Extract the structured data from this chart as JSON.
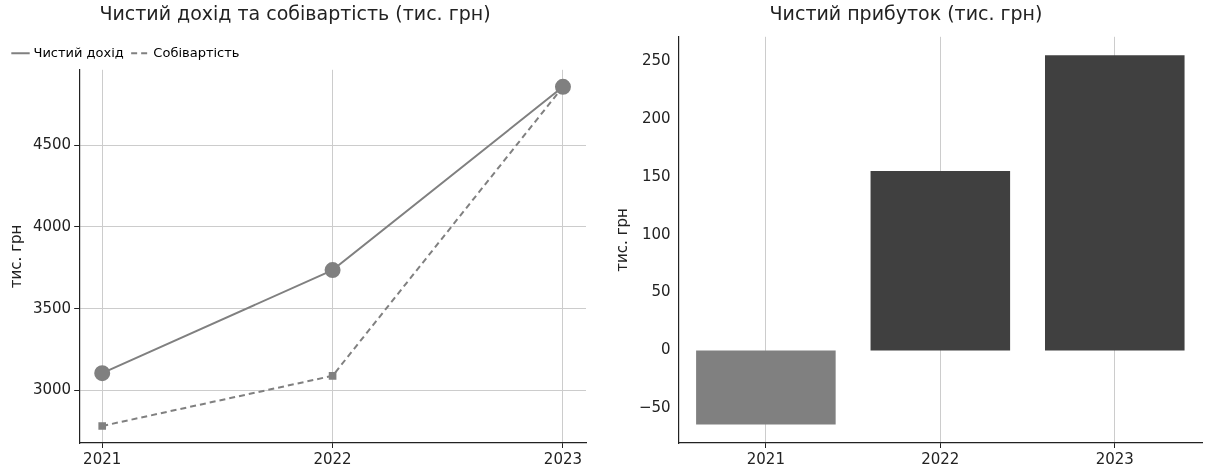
{
  "chart_data": [
    {
      "type": "line",
      "title": "Чистий дохід та собівартість (тис. грн)",
      "ylabel": "тис. грн",
      "x": [
        2021,
        2022,
        2023
      ],
      "xlim": [
        2020.9,
        2023.1
      ],
      "xticks": [
        2021,
        2022,
        2023
      ],
      "ylim": [
        2678,
        4961
      ],
      "yticks": [
        3000,
        3500,
        4000,
        4500
      ],
      "grid": true,
      "legend": "top left",
      "series": [
        {
          "name": "Чистий дохід",
          "color": "#808080",
          "values": [
            3105,
            3736,
            4857
          ],
          "marker": "circle",
          "line_style": "solid"
        },
        {
          "name": "Собівартість",
          "color": "#808080",
          "values": [
            2782,
            3089,
            4857
          ],
          "marker": "square",
          "line_style": "dashed"
        }
      ]
    },
    {
      "type": "bar",
      "title": "Чистий прибуток (тис. грн)",
      "ylabel": "тис. грн",
      "categories": [
        "2021",
        "2022",
        "2023"
      ],
      "values": [
        -64,
        155,
        255
      ],
      "colors": [
        "#808080",
        "#404040",
        "#404040"
      ],
      "ylim": [
        -80,
        271
      ],
      "yticks": [
        {
          "value": -50,
          "label": "−50"
        },
        0,
        50,
        100,
        150,
        200,
        250
      ],
      "grid": "x"
    }
  ]
}
